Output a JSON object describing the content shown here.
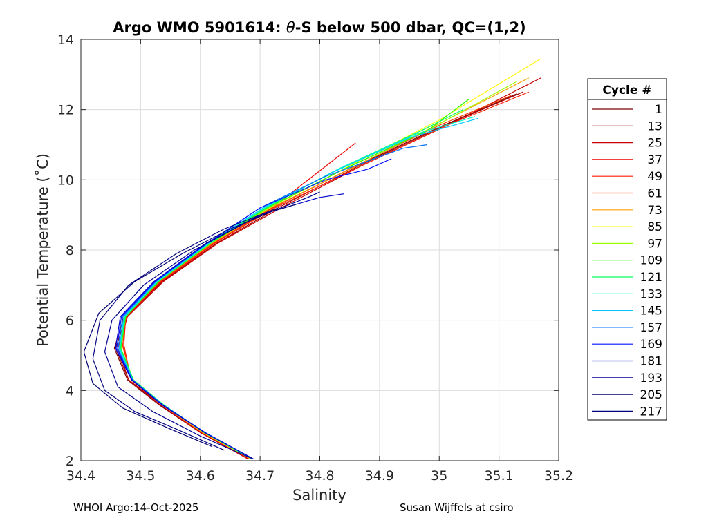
{
  "chart_data": {
    "type": "line",
    "title": "Argo WMO 5901614: θ-S below 500 dbar,  QC=(1,2)",
    "title_parts": {
      "prefix": "Argo WMO 5901614: ",
      "theta": "θ",
      "suffix": "-S below 500 dbar,  QC=(1,2)"
    },
    "xlabel": "Salinity",
    "ylabel": "Potential Temperature (˚C)",
    "xlim": [
      34.4,
      35.2
    ],
    "ylim": [
      2,
      14
    ],
    "xticks": [
      "34.4",
      "34.5",
      "34.6",
      "34.7",
      "34.8",
      "34.9",
      "35",
      "35.1",
      "35.2"
    ],
    "yticks": [
      "2",
      "4",
      "6",
      "8",
      "10",
      "12",
      "14"
    ],
    "grid": true,
    "legend_title": "Cycle #",
    "legend_position": "right, outside plot",
    "series": [
      {
        "name": "1",
        "color": "#7f0000",
        "x": [
          34.68,
          34.6,
          34.53,
          34.478,
          34.456,
          34.472,
          34.53,
          34.62,
          34.72,
          34.85,
          35.0,
          35.13
        ],
        "y": [
          2.05,
          2.8,
          3.6,
          4.3,
          5.2,
          6.1,
          7.1,
          8.2,
          9.2,
          10.3,
          11.5,
          12.45
        ]
      },
      {
        "name": "13",
        "color": "#a40000",
        "x": [
          34.685,
          34.605,
          34.535,
          34.48,
          34.458,
          34.476,
          34.536,
          34.628,
          34.73,
          34.86,
          35.01,
          35.14
        ],
        "y": [
          2.05,
          2.8,
          3.6,
          4.3,
          5.2,
          6.1,
          7.1,
          8.2,
          9.2,
          10.35,
          11.55,
          12.5
        ]
      },
      {
        "name": "25",
        "color": "#c80000",
        "x": [
          34.68,
          34.6,
          34.532,
          34.48,
          34.462,
          34.478,
          34.538,
          34.63,
          34.735,
          34.87,
          35.02,
          35.17
        ],
        "y": [
          2.05,
          2.8,
          3.6,
          4.3,
          5.2,
          6.1,
          7.1,
          8.2,
          9.2,
          10.4,
          11.6,
          12.9
        ]
      },
      {
        "name": "37",
        "color": "#ec0000",
        "x": [
          34.682,
          34.602,
          34.535,
          34.485,
          34.47,
          34.476,
          34.534,
          34.625,
          34.72,
          34.86
        ],
        "y": [
          2.05,
          2.8,
          3.6,
          4.3,
          5.3,
          6.1,
          7.1,
          8.2,
          9.2,
          11.05
        ]
      },
      {
        "name": "49",
        "color": "#ff1c00",
        "x": [
          34.683,
          34.603,
          34.536,
          34.484,
          34.472,
          34.475,
          34.533,
          34.624,
          34.725,
          34.87,
          35.02,
          35.15
        ],
        "y": [
          2.05,
          2.8,
          3.6,
          4.3,
          5.3,
          6.1,
          7.1,
          8.2,
          9.2,
          10.4,
          11.6,
          12.5
        ]
      },
      {
        "name": "61",
        "color": "#ff4000",
        "x": [
          34.684,
          34.604,
          34.536,
          34.486,
          34.47,
          34.474,
          34.532,
          34.622,
          34.722,
          34.86,
          35.0,
          35.12
        ],
        "y": [
          2.05,
          2.8,
          3.6,
          4.3,
          5.25,
          6.1,
          7.1,
          8.2,
          9.2,
          10.4,
          11.55,
          12.4
        ]
      },
      {
        "name": "73",
        "color": "#ffa000",
        "x": [
          34.684,
          34.604,
          34.535,
          34.486,
          34.465,
          34.473,
          34.53,
          34.62,
          34.718,
          34.85,
          35.0,
          35.15
        ],
        "y": [
          2.05,
          2.8,
          3.6,
          4.3,
          5.2,
          6.1,
          7.1,
          8.2,
          9.2,
          10.3,
          11.6,
          12.9
        ]
      },
      {
        "name": "85",
        "color": "#ffff00",
        "x": [
          34.685,
          34.605,
          34.536,
          34.487,
          34.466,
          34.474,
          34.53,
          34.618,
          34.715,
          34.85,
          35.0,
          35.17
        ],
        "y": [
          2.05,
          2.8,
          3.6,
          4.3,
          5.2,
          6.1,
          7.1,
          8.2,
          9.2,
          10.4,
          11.7,
          13.45
        ]
      },
      {
        "name": "97",
        "color": "#9cff00",
        "x": [
          34.686,
          34.606,
          34.538,
          34.488,
          34.467,
          34.475,
          34.53,
          34.618,
          34.715,
          34.84,
          34.99,
          35.13
        ],
        "y": [
          2.05,
          2.8,
          3.6,
          4.3,
          5.2,
          6.1,
          7.1,
          8.2,
          9.2,
          10.3,
          11.5,
          12.8
        ]
      },
      {
        "name": "109",
        "color": "#2cff00",
        "x": [
          34.686,
          34.606,
          34.538,
          34.488,
          34.467,
          34.475,
          34.53,
          34.618,
          34.712,
          34.84,
          34.98,
          35.05
        ],
        "y": [
          2.05,
          2.8,
          3.6,
          4.3,
          5.2,
          6.1,
          7.1,
          8.2,
          9.2,
          10.3,
          11.4,
          12.3
        ]
      },
      {
        "name": "121",
        "color": "#00ff60",
        "x": [
          34.687,
          34.607,
          34.538,
          34.488,
          34.466,
          34.474,
          34.528,
          34.616,
          34.71,
          34.83,
          34.97,
          35.04
        ],
        "y": [
          2.05,
          2.8,
          3.6,
          4.3,
          5.2,
          6.1,
          7.1,
          8.2,
          9.2,
          10.3,
          11.4,
          12.0
        ]
      },
      {
        "name": "133",
        "color": "#00ffc8",
        "x": [
          34.687,
          34.607,
          34.537,
          34.487,
          34.465,
          34.473,
          34.528,
          34.616,
          34.708,
          34.83,
          34.96,
          35.06
        ],
        "y": [
          2.05,
          2.8,
          3.6,
          4.3,
          5.2,
          6.1,
          7.1,
          8.2,
          9.2,
          10.3,
          11.3,
          11.8
        ]
      },
      {
        "name": "145",
        "color": "#00c8ff",
        "x": [
          34.688,
          34.608,
          34.537,
          34.487,
          34.464,
          34.472,
          34.527,
          34.614,
          34.705,
          34.82,
          34.95,
          35.065
        ],
        "y": [
          2.05,
          2.8,
          3.6,
          4.3,
          5.2,
          6.1,
          7.1,
          8.2,
          9.2,
          10.2,
          11.2,
          11.75
        ]
      },
      {
        "name": "157",
        "color": "#0070ff",
        "x": [
          34.688,
          34.608,
          34.536,
          34.486,
          34.462,
          34.47,
          34.525,
          34.612,
          34.7,
          34.81,
          34.94,
          34.98
        ],
        "y": [
          2.05,
          2.8,
          3.6,
          4.3,
          5.2,
          6.1,
          7.1,
          8.2,
          9.2,
          10.1,
          10.9,
          11.0
        ]
      },
      {
        "name": "169",
        "color": "#0010ff",
        "x": [
          34.689,
          34.608,
          34.536,
          34.486,
          34.46,
          34.468,
          34.524,
          34.612,
          34.7,
          34.81,
          34.88,
          34.92
        ],
        "y": [
          2.05,
          2.8,
          3.6,
          4.3,
          5.2,
          6.1,
          7.1,
          8.2,
          9.2,
          10.0,
          10.3,
          10.6
        ]
      },
      {
        "name": "181",
        "color": "#0000c8",
        "x": [
          34.689,
          34.607,
          34.535,
          34.485,
          34.458,
          34.466,
          34.522,
          34.61,
          34.7,
          34.8,
          34.84
        ],
        "y": [
          2.05,
          2.8,
          3.6,
          4.3,
          5.2,
          6.1,
          7.1,
          8.2,
          9.0,
          9.5,
          9.6
        ]
      },
      {
        "name": "193",
        "color": "#000090",
        "x": [
          34.688,
          34.6,
          34.52,
          34.462,
          34.44,
          34.452,
          34.505,
          34.59,
          34.69,
          34.78,
          34.8
        ],
        "y": [
          2.05,
          2.7,
          3.4,
          4.1,
          5.1,
          6.0,
          7.0,
          8.0,
          8.9,
          9.5,
          9.65
        ]
      },
      {
        "name": "205",
        "color": "#000070",
        "x": [
          34.62,
          34.55,
          34.47,
          34.42,
          34.405,
          34.43,
          34.49,
          34.57,
          34.65,
          34.72,
          34.76
        ],
        "y": [
          2.4,
          2.9,
          3.5,
          4.2,
          5.1,
          6.2,
          7.1,
          7.9,
          8.6,
          9.1,
          9.3
        ]
      },
      {
        "name": "217",
        "color": "#000080",
        "x": [
          34.64,
          34.56,
          34.49,
          34.44,
          34.42,
          34.432,
          34.48,
          34.56,
          34.64,
          34.7,
          34.73
        ],
        "y": [
          2.3,
          2.9,
          3.4,
          4.0,
          4.9,
          6.0,
          7.0,
          7.9,
          8.6,
          9.0,
          9.2
        ]
      }
    ]
  },
  "footer": {
    "left": "WHOI Argo:14-Oct-2025",
    "right": "Susan Wijffels at csiro"
  }
}
